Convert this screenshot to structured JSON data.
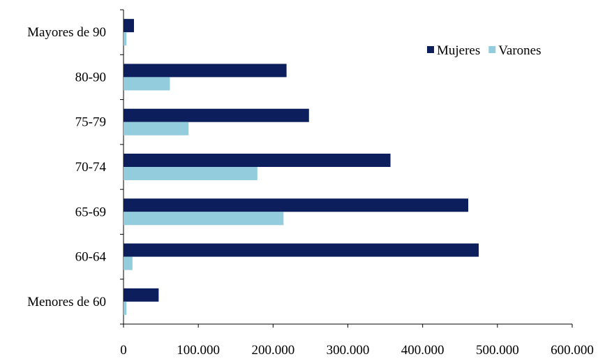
{
  "chart_data": {
    "type": "bar",
    "orientation": "horizontal",
    "categories": [
      "Menores de 60",
      "60-64",
      "65-69",
      "70-74",
      "75-79",
      "80-90",
      "Mayores de 90"
    ],
    "series": [
      {
        "name": "Mujeres",
        "color": "#0c1f5c",
        "values": [
          47000,
          475000,
          461000,
          357000,
          248000,
          218000,
          14000
        ]
      },
      {
        "name": "Varones",
        "color": "#93cddd",
        "values": [
          4000,
          12000,
          214000,
          179000,
          87000,
          62000,
          4000
        ]
      }
    ],
    "xlim": [
      0,
      600000
    ],
    "xticks": [
      {
        "value": 0,
        "label": "0"
      },
      {
        "value": 100000,
        "label": "100.000"
      },
      {
        "value": 200000,
        "label": "200.000"
      },
      {
        "value": 300000,
        "label": "300.000"
      },
      {
        "value": 400000,
        "label": "400.000"
      },
      {
        "value": 500000,
        "label": "500.000"
      },
      {
        "value": 600000,
        "label": "600.000"
      }
    ],
    "grid": false,
    "legend_position": "top-right"
  }
}
